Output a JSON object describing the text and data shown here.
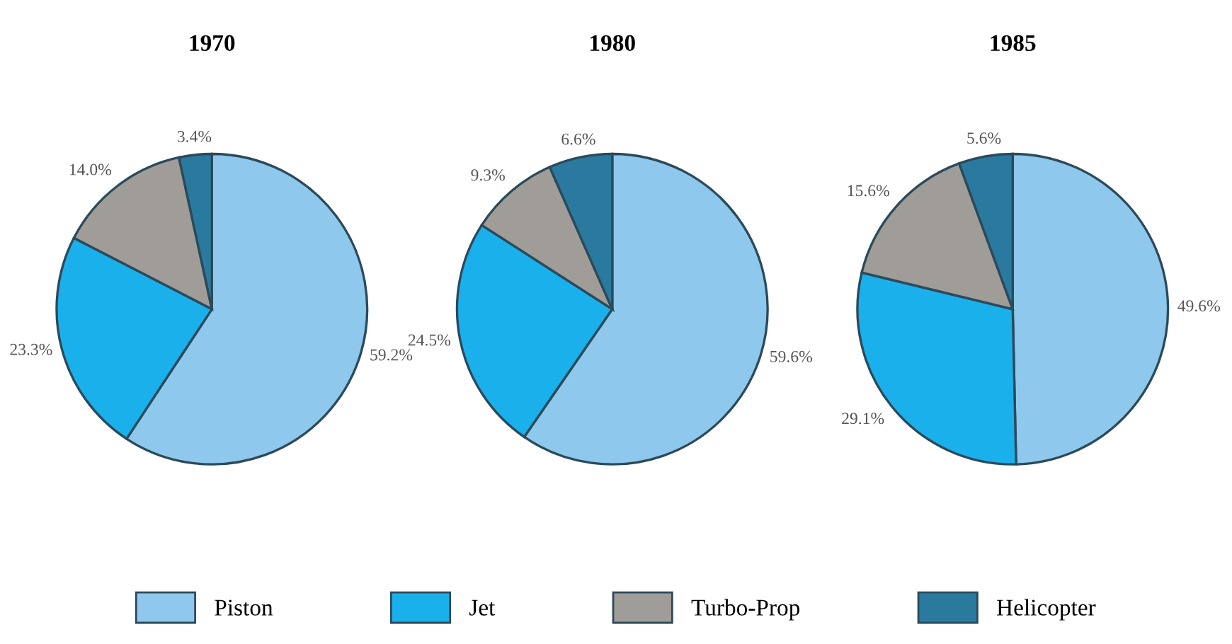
{
  "chart_data": [
    {
      "type": "pie",
      "title": "1970",
      "categories": [
        "Piston",
        "Jet",
        "Turbo-Prop",
        "Helicopter"
      ],
      "values": [
        59.2,
        23.3,
        14.0,
        3.4
      ],
      "value_labels": [
        "59.2%",
        "23.3%",
        "14.0%",
        "3.4%"
      ],
      "colors": [
        "#8ec8ec",
        "#1ab0ec",
        "#a09c98",
        "#2a7aa0"
      ],
      "legend": "bottom"
    },
    {
      "type": "pie",
      "title": "1980",
      "values": [
        59.6,
        24.5,
        9.3,
        6.6
      ],
      "value_labels": [
        "59.6%",
        "24.5%",
        "9.3%",
        "6.6%"
      ],
      "colors": [
        "#8ec8ec",
        "#1ab0ec",
        "#a09c98",
        "#2a7aa0"
      ]
    },
    {
      "type": "pie",
      "title": "1985",
      "values": [
        49.6,
        29.1,
        15.6,
        5.6
      ],
      "value_labels": [
        "49.6%",
        "29.1%",
        "15.6%",
        "5.6%"
      ],
      "colors": [
        "#8ec8ec",
        "#1ab0ec",
        "#a09c98",
        "#2a7aa0"
      ]
    }
  ]
}
